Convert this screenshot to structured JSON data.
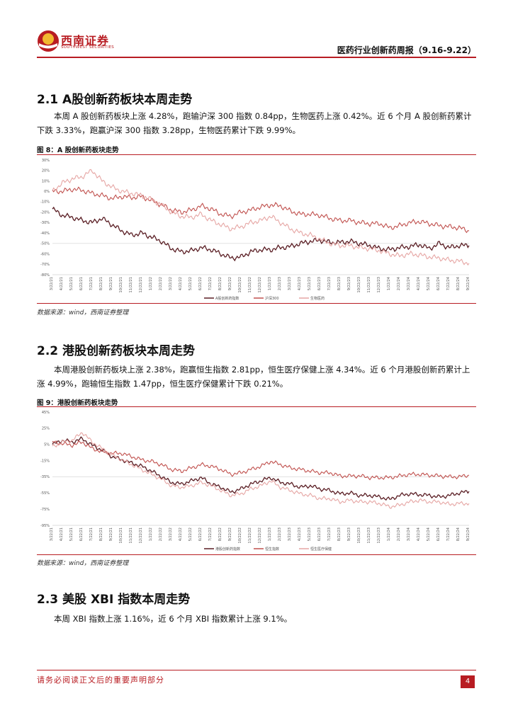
{
  "header": {
    "logo_cn": "西南证券",
    "logo_en": "SOUTHWEST SECURITIES",
    "report_title": "医药行业创新药周报（9.16-9.22）"
  },
  "sections": [
    {
      "heading": "2.1 A股创新药板块本周走势",
      "paragraph": "本周 A 股创新药板块上涨 4.28%，跑输沪深 300 指数 0.84pp，生物医药上涨 0.42%。近 6 个月 A 股创新药累计下跌 3.33%，跑赢沪深 300 指数 3.28pp，生物医药累计下跌 9.99%。",
      "figure_title": "图 8：A 股创新药板块走势",
      "source": "数据来源：wind，西南证券整理"
    },
    {
      "heading": "2.2 港股创新药板块本周走势",
      "paragraph": "本周港股创新药板块上涨 2.38%，跑赢恒生指数 2.81pp，恒生医疗保健上涨 4.34%。近 6 个月港股创新药累计上涨 4.99%，跑输恒生指数 1.47pp，恒生医疗保健累计下跌 0.21%。",
      "figure_title": "图 9：港股创新药板块走势",
      "source": "数据来源：wind，西南证券整理"
    },
    {
      "heading": "2.3 美股 XBI 指数本周走势",
      "paragraph": "本周 XBI 指数上涨 1.16%，近 6 个月 XBI 指数累计上涨 9.1%。"
    }
  ],
  "chart_data": [
    {
      "type": "line",
      "ylim": [
        -80,
        30
      ],
      "yticks": [
        "30%",
        "20%",
        "10%",
        "0%",
        "-10%",
        "-20%",
        "-30%",
        "-40%",
        "-50%",
        "-60%",
        "-70%",
        "-80%"
      ],
      "x_labels": [
        "3/22/21",
        "4/22/21",
        "5/22/21",
        "6/22/21",
        "7/22/21",
        "8/22/21",
        "9/22/21",
        "10/22/21",
        "11/22/21",
        "12/22/21",
        "1/22/22",
        "2/22/22",
        "3/22/22",
        "4/22/22",
        "5/22/22",
        "6/22/22",
        "7/22/22",
        "8/22/22",
        "9/22/22",
        "10/22/22",
        "11/22/22",
        "12/22/22",
        "1/22/23",
        "2/22/23",
        "3/22/23",
        "4/22/23",
        "5/22/23",
        "6/22/23",
        "7/22/23",
        "8/22/23",
        "9/22/23",
        "10/22/23",
        "11/22/23",
        "12/22/23",
        "1/22/24",
        "2/22/24",
        "3/22/24",
        "4/22/24",
        "5/22/24",
        "6/22/24",
        "7/22/24",
        "8/22/24",
        "9/22/24"
      ],
      "series": [
        {
          "name": "A股创新药指数",
          "color": "#5a1e24",
          "values": [
            -17,
            -23,
            -25,
            -28,
            -30,
            -26,
            -32,
            -38,
            -42,
            -40,
            -44,
            -48,
            -55,
            -58,
            -57,
            -54,
            -56,
            -60,
            -64,
            -63,
            -58,
            -56,
            -56,
            -54,
            -53,
            -50,
            -48,
            -47,
            -49,
            -49,
            -48,
            -50,
            -52,
            -55,
            -56,
            -54,
            -53,
            -51,
            -55,
            -50,
            -54,
            -52,
            -52
          ]
        },
        {
          "name": "沪深300",
          "color": "#c0504d",
          "values": [
            0,
            0,
            2,
            1,
            -2,
            -4,
            -7,
            -5,
            -6,
            -5,
            -9,
            -13,
            -18,
            -20,
            -18,
            -14,
            -17,
            -22,
            -24,
            -20,
            -18,
            -15,
            -13,
            -14,
            -19,
            -22,
            -22,
            -23,
            -26,
            -28,
            -28,
            -30,
            -31,
            -31,
            -35,
            -33,
            -30,
            -29,
            -31,
            -33,
            -34,
            -35,
            -38
          ]
        },
        {
          "name": "生物医药",
          "color": "#e6a6a4",
          "values": [
            0,
            8,
            12,
            14,
            20,
            10,
            4,
            0,
            -2,
            -4,
            -8,
            -13,
            -20,
            -24,
            -25,
            -22,
            -28,
            -32,
            -36,
            -34,
            -30,
            -28,
            -24,
            -30,
            -36,
            -40,
            -42,
            -46,
            -50,
            -52,
            -52,
            -54,
            -55,
            -57,
            -60,
            -62,
            -60,
            -61,
            -63,
            -64,
            -66,
            -67,
            -69
          ]
        }
      ]
    },
    {
      "type": "line",
      "ylim": [
        -95,
        45
      ],
      "yticks": [
        "45%",
        "25%",
        "5%",
        "-15%",
        "-35%",
        "-55%",
        "-75%",
        "-95%"
      ],
      "x_labels": [
        "3/22/21",
        "4/22/21",
        "5/22/21",
        "6/22/21",
        "7/22/21",
        "8/22/21",
        "9/22/21",
        "10/22/21",
        "11/22/21",
        "12/22/21",
        "1/22/22",
        "2/22/22",
        "3/22/22",
        "4/22/22",
        "5/22/22",
        "6/22/22",
        "7/22/22",
        "8/22/22",
        "9/22/22",
        "10/22/22",
        "11/22/22",
        "12/22/22",
        "1/22/23",
        "2/22/23",
        "3/22/23",
        "4/22/23",
        "5/22/23",
        "6/22/23",
        "7/22/23",
        "8/22/23",
        "9/22/23",
        "10/22/23",
        "11/22/23",
        "12/22/23",
        "1/22/24",
        "2/22/24",
        "3/22/24",
        "4/22/24",
        "5/22/24",
        "6/22/24",
        "7/22/24",
        "8/22/24",
        "9/22/24"
      ],
      "series": [
        {
          "name": "港股创新药指数",
          "color": "#5a1e24",
          "values": [
            5,
            10,
            8,
            12,
            4,
            -2,
            -10,
            -14,
            -18,
            -22,
            -28,
            -35,
            -42,
            -44,
            -40,
            -36,
            -44,
            -48,
            -54,
            -50,
            -44,
            -40,
            -36,
            -42,
            -44,
            -48,
            -46,
            -50,
            -52,
            -56,
            -55,
            -58,
            -58,
            -60,
            -63,
            -58,
            -56,
            -57,
            -58,
            -60,
            -58,
            -55,
            -53
          ]
        },
        {
          "name": "恒生指数",
          "color": "#c0504d",
          "values": [
            8,
            6,
            4,
            8,
            0,
            -4,
            -6,
            -6,
            -10,
            -14,
            -16,
            -20,
            -26,
            -28,
            -24,
            -20,
            -22,
            -26,
            -32,
            -30,
            -26,
            -22,
            -16,
            -20,
            -24,
            -26,
            -28,
            -30,
            -30,
            -34,
            -34,
            -34,
            -36,
            -36,
            -36,
            -34,
            -32,
            -32,
            -33,
            -34,
            -35,
            -35,
            -33
          ]
        },
        {
          "name": "恒生医疗保健",
          "color": "#e6a6a4",
          "values": [
            2,
            8,
            10,
            20,
            8,
            0,
            -8,
            -14,
            -20,
            -26,
            -32,
            -38,
            -46,
            -48,
            -46,
            -42,
            -46,
            -52,
            -58,
            -56,
            -50,
            -46,
            -40,
            -48,
            -52,
            -56,
            -58,
            -62,
            -62,
            -66,
            -64,
            -66,
            -66,
            -68,
            -72,
            -70,
            -66,
            -64,
            -66,
            -66,
            -69,
            -68,
            -68
          ]
        }
      ]
    }
  ],
  "footer": {
    "disclaimer": "请务必阅读正文后的重要声明部分",
    "page_number": "4"
  }
}
